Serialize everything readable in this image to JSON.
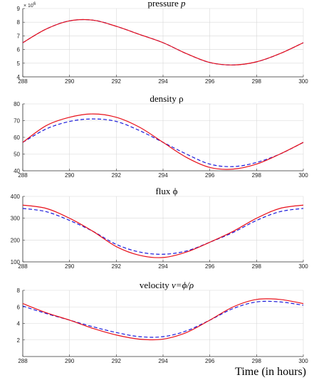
{
  "figure": {
    "xlabel": "Time (in hours)",
    "colors": {
      "series_red": "#e8101a",
      "series_blue": "#1a1adc",
      "grid": "#d8d8d8",
      "axis": "#333333"
    }
  },
  "chart_data": [
    {
      "type": "line",
      "title": "pressure",
      "title_var": "p",
      "title_var_italic": true,
      "xlim": [
        288,
        300
      ],
      "ylim": [
        4,
        9
      ],
      "xticks": [
        "288",
        "290",
        "292",
        "294",
        "296",
        "298",
        "300"
      ],
      "yticks": [
        "4",
        "5",
        "6",
        "7",
        "8",
        "9"
      ],
      "y_exponent_label": "× 10",
      "y_exponent_power": "6",
      "grid": true,
      "series": [
        {
          "color": "#e8101a",
          "dash": "solid",
          "x": [
            288,
            289,
            290,
            291,
            292,
            293,
            294,
            295,
            296,
            297,
            298,
            299,
            300
          ],
          "y": [
            6.5,
            7.5,
            8.1,
            8.15,
            7.7,
            7.1,
            6.5,
            5.7,
            5.05,
            4.87,
            5.1,
            5.7,
            6.5
          ]
        },
        {
          "color": "#1a1adc",
          "dash": "dashed",
          "x": [
            288,
            289,
            290,
            291,
            292,
            293,
            294,
            295,
            296,
            297,
            298,
            299,
            300
          ],
          "y": [
            6.5,
            7.5,
            8.1,
            8.15,
            7.7,
            7.1,
            6.5,
            5.7,
            5.05,
            4.87,
            5.1,
            5.7,
            6.5
          ]
        }
      ]
    },
    {
      "type": "line",
      "title": "density",
      "title_var": "ρ",
      "title_var_italic": false,
      "xlim": [
        288,
        300
      ],
      "ylim": [
        40,
        80
      ],
      "xticks": [
        "288",
        "290",
        "292",
        "294",
        "296",
        "298",
        "300"
      ],
      "yticks": [
        "40",
        "50",
        "60",
        "70",
        "80"
      ],
      "grid": true,
      "series": [
        {
          "color": "#e8101a",
          "dash": "solid",
          "x": [
            288,
            289,
            290,
            291,
            292,
            293,
            294,
            295,
            296,
            297,
            298,
            299,
            300
          ],
          "y": [
            57,
            67,
            72,
            74,
            72,
            66,
            57,
            48,
            42,
            41,
            44,
            50,
            57
          ]
        },
        {
          "color": "#1a1adc",
          "dash": "dashed",
          "x": [
            288,
            289,
            290,
            291,
            292,
            293,
            294,
            295,
            296,
            297,
            298,
            299,
            300
          ],
          "y": [
            57,
            65,
            69.5,
            71,
            69.5,
            64,
            57,
            50,
            44,
            42.5,
            45,
            50,
            57
          ]
        }
      ]
    },
    {
      "type": "line",
      "title": "flux",
      "title_var": "ϕ",
      "title_var_italic": false,
      "xlim": [
        288,
        300
      ],
      "ylim": [
        100,
        400
      ],
      "xticks": [
        "288",
        "290",
        "292",
        "294",
        "296",
        "298",
        "300"
      ],
      "yticks": [
        "100",
        "200",
        "300",
        "400"
      ],
      "grid": true,
      "series": [
        {
          "color": "#e8101a",
          "dash": "solid",
          "x": [
            288,
            289,
            290,
            291,
            292,
            293,
            294,
            295,
            296,
            297,
            298,
            299,
            300
          ],
          "y": [
            360,
            345,
            300,
            240,
            170,
            130,
            120,
            145,
            190,
            240,
            300,
            345,
            360
          ]
        },
        {
          "color": "#1a1adc",
          "dash": "dashed",
          "x": [
            288,
            289,
            290,
            291,
            292,
            293,
            294,
            295,
            296,
            297,
            298,
            299,
            300
          ],
          "y": [
            345,
            330,
            290,
            240,
            180,
            145,
            135,
            150,
            190,
            235,
            290,
            330,
            345
          ]
        }
      ]
    },
    {
      "type": "line",
      "title": "velocity",
      "title_var": "v=ϕ/ρ",
      "title_var_italic": true,
      "xlim": [
        288,
        300
      ],
      "ylim": [
        0,
        8
      ],
      "xticks": [
        "288",
        "290",
        "292",
        "294",
        "296",
        "298",
        "300"
      ],
      "yticks": [
        "2",
        "4",
        "6",
        "8"
      ],
      "grid": true,
      "series": [
        {
          "color": "#e8101a",
          "dash": "solid",
          "x": [
            288,
            289,
            290,
            291,
            292,
            293,
            294,
            295,
            296,
            297,
            298,
            299,
            300
          ],
          "y": [
            6.4,
            5.3,
            4.4,
            3.4,
            2.6,
            2.1,
            2.1,
            2.9,
            4.4,
            6.0,
            6.9,
            6.9,
            6.4
          ]
        },
        {
          "color": "#1a1adc",
          "dash": "dashed",
          "x": [
            288,
            289,
            290,
            291,
            292,
            293,
            294,
            295,
            296,
            297,
            298,
            299,
            300
          ],
          "y": [
            6.1,
            5.2,
            4.4,
            3.6,
            2.9,
            2.4,
            2.4,
            3.1,
            4.4,
            5.8,
            6.6,
            6.6,
            6.2
          ]
        }
      ]
    }
  ]
}
